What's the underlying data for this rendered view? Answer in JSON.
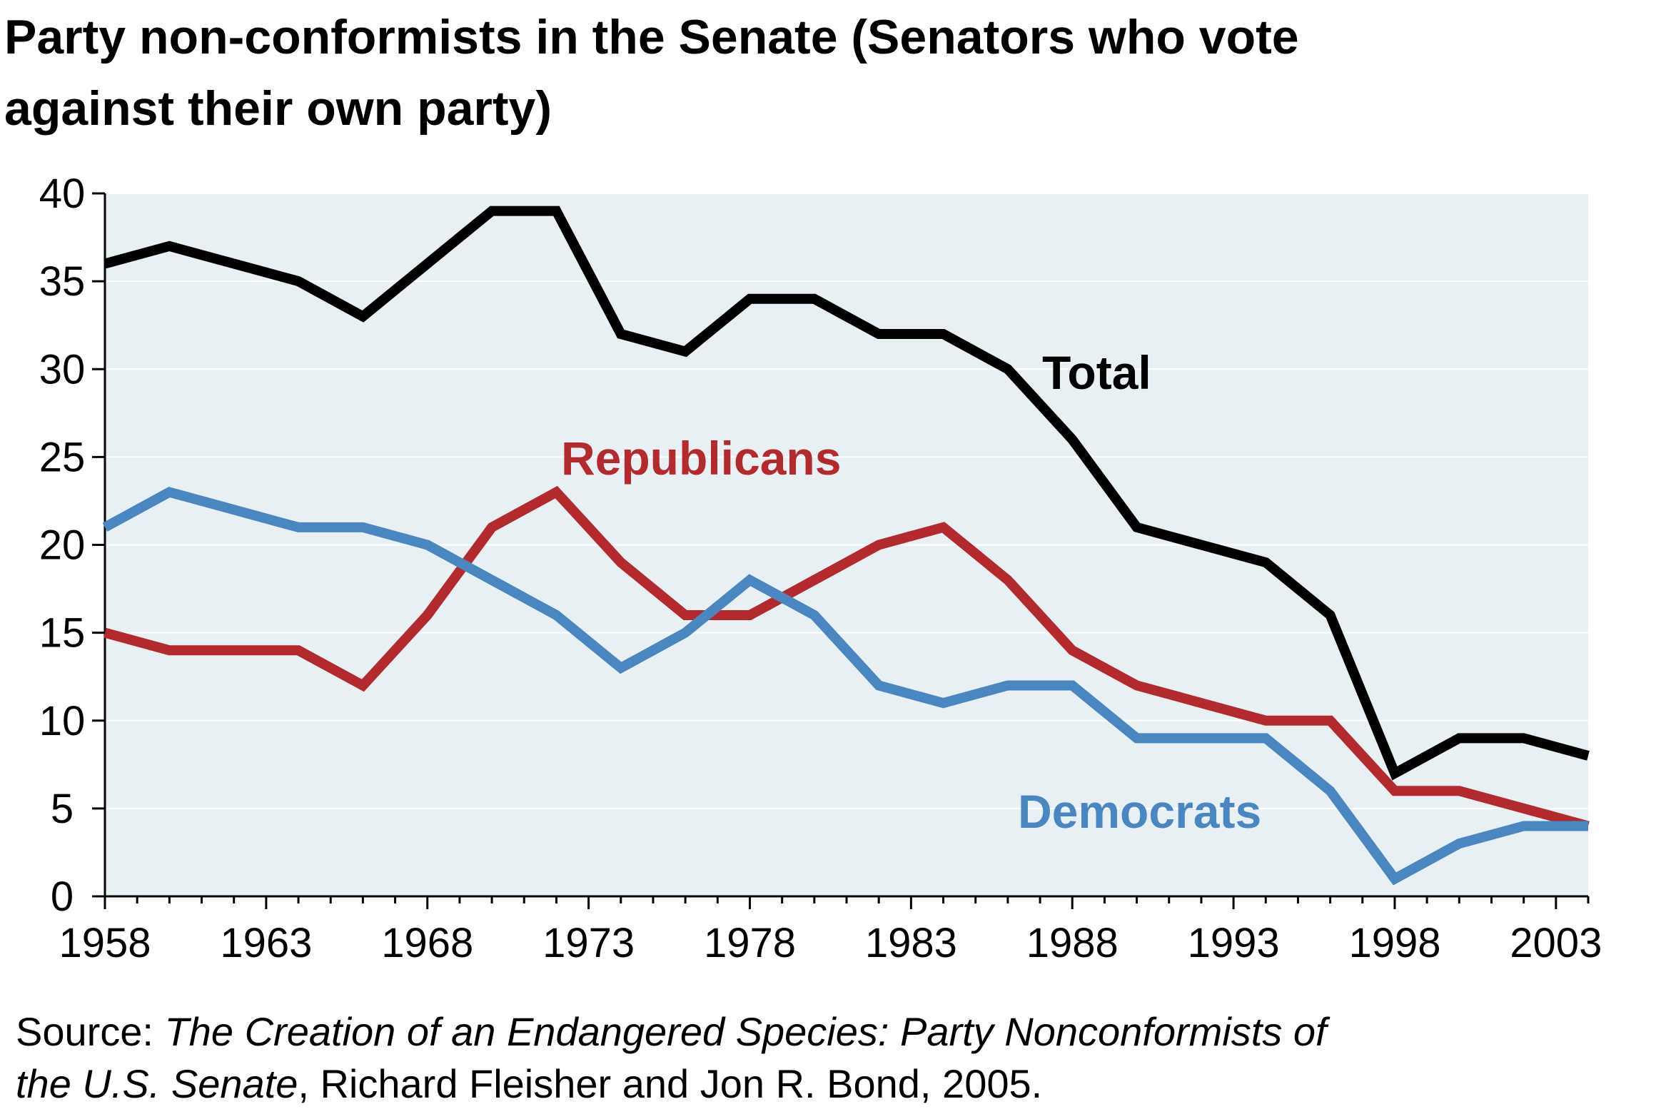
{
  "chart_data": {
    "type": "line",
    "title_line1": "Party non-conformists in the Senate (Senators who vote",
    "title_line2": "against their own party)",
    "x": [
      1958,
      1960,
      1962,
      1964,
      1966,
      1968,
      1970,
      1972,
      1974,
      1976,
      1978,
      1980,
      1982,
      1984,
      1986,
      1988,
      1990,
      1992,
      1994,
      1996,
      1998,
      2000,
      2002,
      2004
    ],
    "x_ticks": [
      "1958",
      "1963",
      "1968",
      "1973",
      "1978",
      "1983",
      "1988",
      "1993",
      "1998",
      "2003"
    ],
    "y_ticks": [
      "0",
      "5",
      "10",
      "15",
      "20",
      "25",
      "30",
      "35",
      "40"
    ],
    "xlim": [
      1958,
      2004
    ],
    "ylim": [
      0,
      40
    ],
    "grid": true,
    "series": [
      {
        "name": "Total",
        "color": "#000000",
        "values": [
          36,
          37,
          36,
          35,
          33,
          36,
          39,
          39,
          32,
          31,
          34,
          34,
          32,
          32,
          30,
          26,
          21,
          20,
          19,
          16,
          7,
          9,
          9,
          8
        ]
      },
      {
        "name": "Republicans",
        "color": "#b22a2e",
        "values": [
          15,
          14,
          14,
          14,
          12,
          16,
          21,
          23,
          19,
          16,
          16,
          18,
          20,
          21,
          18,
          14,
          12,
          11,
          10,
          10,
          6,
          6,
          5,
          4
        ]
      },
      {
        "name": "Democrats",
        "color": "#4a86c0",
        "values": [
          21,
          23,
          22,
          21,
          21,
          20,
          18,
          16,
          13,
          15,
          18,
          16,
          12,
          11,
          12,
          12,
          9,
          9,
          9,
          6,
          1,
          3,
          4,
          4
        ]
      }
    ],
    "source_prefix": "Source: ",
    "source_title_1": "The Creation of an Endangered Species: Party Nonconformists of",
    "source_title_2": "the U.S. Senate",
    "source_rest": ", Richard Fleisher and Jon R. Bond, 2005.",
    "plot_background": "#e8f0f4"
  }
}
